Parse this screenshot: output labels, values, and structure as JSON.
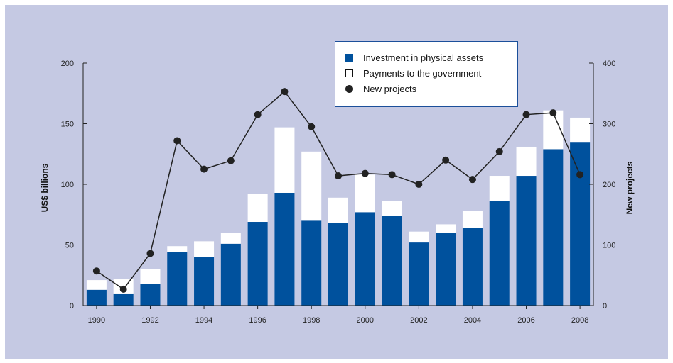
{
  "colors": {
    "background": "#c5c9e3",
    "investment": "#00519d",
    "payments": "#ffffff",
    "line": "#222222"
  },
  "chart_data": {
    "type": "bar",
    "stacked": true,
    "categories": [
      "1990",
      "1991",
      "1992",
      "1993",
      "1994",
      "1995",
      "1996",
      "1997",
      "1998",
      "1999",
      "2000",
      "2001",
      "2002",
      "2003",
      "2004",
      "2005",
      "2006",
      "2007",
      "2008"
    ],
    "x_tick_labels": [
      "1990",
      "1992",
      "1994",
      "1996",
      "1998",
      "2000",
      "2002",
      "2004",
      "2006",
      "2008"
    ],
    "series": [
      {
        "name": "Investment in physical assets",
        "type": "bar",
        "axis": "left",
        "values": [
          13,
          10,
          18,
          44,
          40,
          51,
          69,
          93,
          70,
          68,
          77,
          74,
          52,
          60,
          64,
          86,
          107,
          129,
          135
        ]
      },
      {
        "name": "Payments to the government",
        "type": "bar",
        "axis": "left",
        "values": [
          8,
          12,
          12,
          5,
          13,
          9,
          23,
          54,
          57,
          21,
          31,
          12,
          9,
          7,
          14,
          21,
          24,
          32,
          20
        ]
      },
      {
        "name": "New projects",
        "type": "line",
        "axis": "right",
        "values": [
          57,
          27,
          86,
          272,
          225,
          239,
          315,
          353,
          295,
          214,
          218,
          216,
          200,
          240,
          208,
          254,
          315,
          318,
          216
        ]
      }
    ],
    "ylabel": "US$ billions",
    "y2label": "New projects",
    "ylim": [
      0,
      200
    ],
    "y2lim": [
      0,
      400
    ],
    "y_ticks": [
      0,
      50,
      100,
      150,
      200
    ],
    "y2_ticks": [
      0,
      100,
      200,
      300,
      400
    ],
    "legend": [
      "Investment in physical assets",
      "Payments to the government",
      "New projects"
    ],
    "legend_position": "top-right"
  }
}
